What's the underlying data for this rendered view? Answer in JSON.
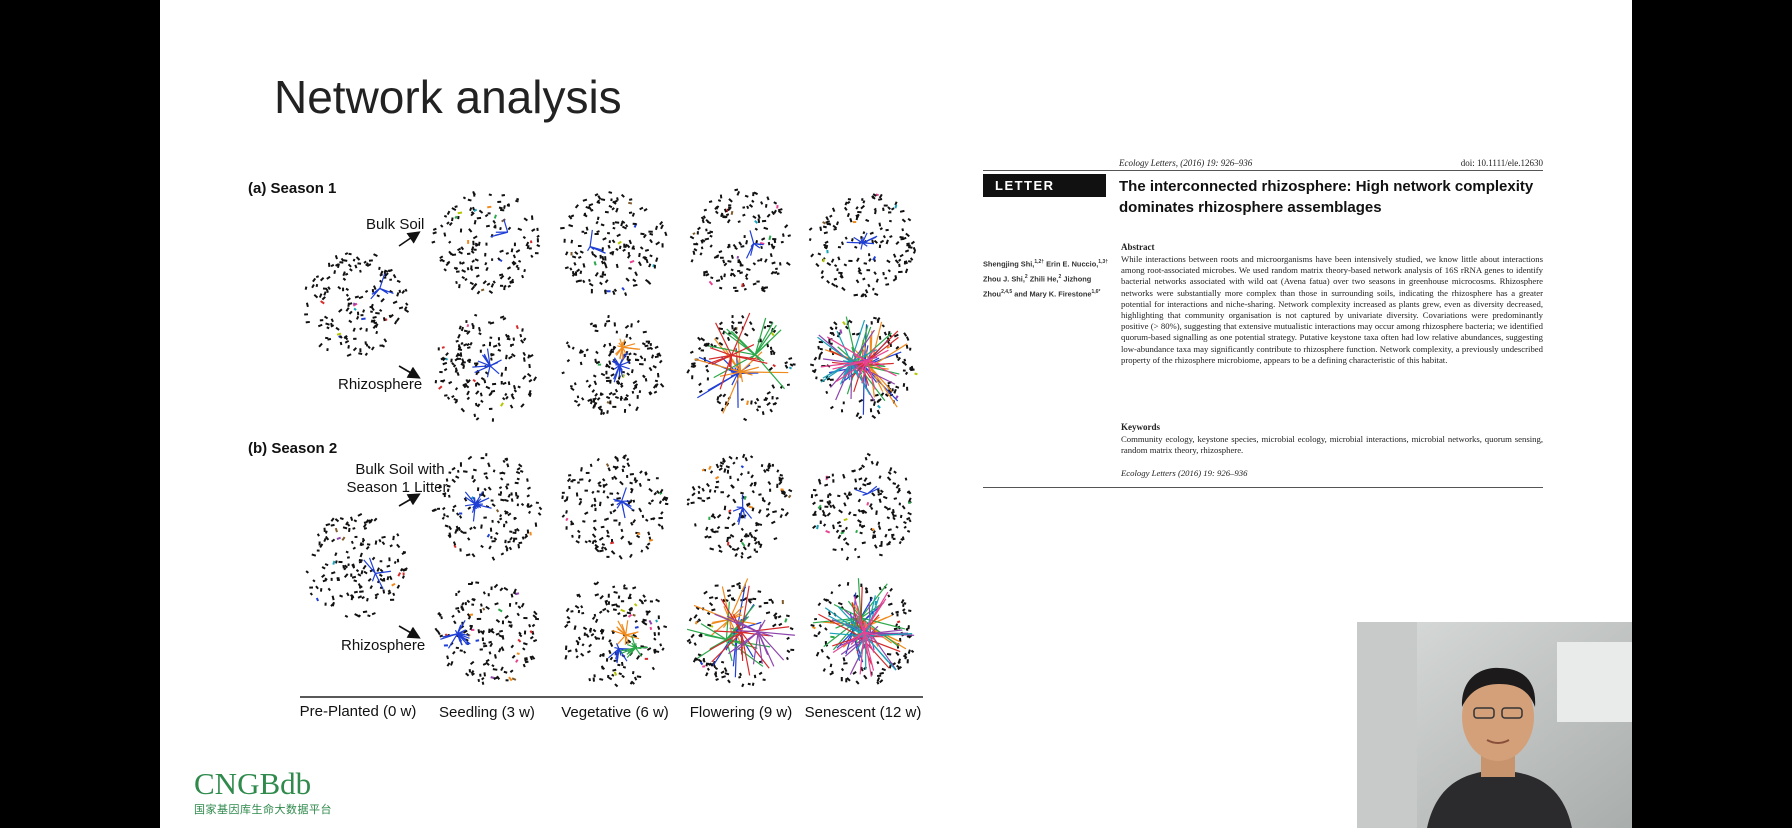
{
  "slide": {
    "title": "Network analysis"
  },
  "figure": {
    "panels": [
      {
        "label": "(a) Season 1",
        "bulk_label": [
          "Bulk Soil"
        ],
        "rhizo_label": "Rhizosphere"
      },
      {
        "label": "(b) Season 2",
        "bulk_label": [
          "Bulk Soil with",
          "Season 1 Litter"
        ],
        "rhizo_label": "Rhizosphere"
      }
    ],
    "stages": [
      "Pre-Planted (0 w)",
      "Seedling (3 w)",
      "Vegetative (6 w)",
      "Flowering (9 w)",
      "Senescent (12 w)"
    ]
  },
  "paper": {
    "journal": "Ecology Letters, (2016) 19: 926–936",
    "doi": "doi: 10.1111/ele.12630",
    "badge": "LETTER",
    "title": "The interconnected rhizosphere: High network complexity dominates rhizosphere assemblages",
    "authors": [
      {
        "name": "Shengjing Shi,",
        "sup": "1,2†"
      },
      {
        "name": "Erin E. Nuccio,",
        "sup": "1,3†"
      },
      {
        "name": "Zhou J. Shi,",
        "sup": "2"
      },
      {
        "name": "Zhili He,",
        "sup": "2"
      },
      {
        "name": "Jizhong Zhou",
        "sup": "2,4,5"
      },
      {
        "name": "and Mary K. Firestone",
        "sup": "1,6*"
      }
    ],
    "abstract_heading": "Abstract",
    "abstract": "While interactions between roots and microorganisms have been intensively studied, we know little about interactions among root-associated microbes. We used random matrix theory-based network analysis of 16S rRNA genes to identify bacterial networks associated with wild oat (Avena fatua) over two seasons in greenhouse microcosms. Rhizosphere networks were substantially more complex than those in surrounding soils, indicating the rhizosphere has a greater potential for interactions and niche-sharing. Network complexity increased as plants grew, even as diversity decreased, highlighting that community organisation is not captured by univariate diversity. Covariations were predominantly positive (> 80%), suggesting that extensive mutualistic interactions may occur among rhizosphere bacteria; we identified quorum-based signalling as one potential strategy. Putative keystone taxa often had low relative abundances, suggesting low-abundance taxa may significantly contribute to rhizosphere function. Network complexity, a previously undescribed property of the rhizosphere microbiome, appears to be a defining characteristic of this habitat.",
    "keywords_heading": "Keywords",
    "keywords": "Community ecology, keystone species, microbial ecology, microbial interactions, microbial networks, quorum sensing, random matrix theory, rhizosphere.",
    "footer": "Ecology Letters (2016) 19: 926–936"
  },
  "logo": {
    "name": "CNGBdb",
    "subtitle": "国家基因库生命大数据平台"
  }
}
